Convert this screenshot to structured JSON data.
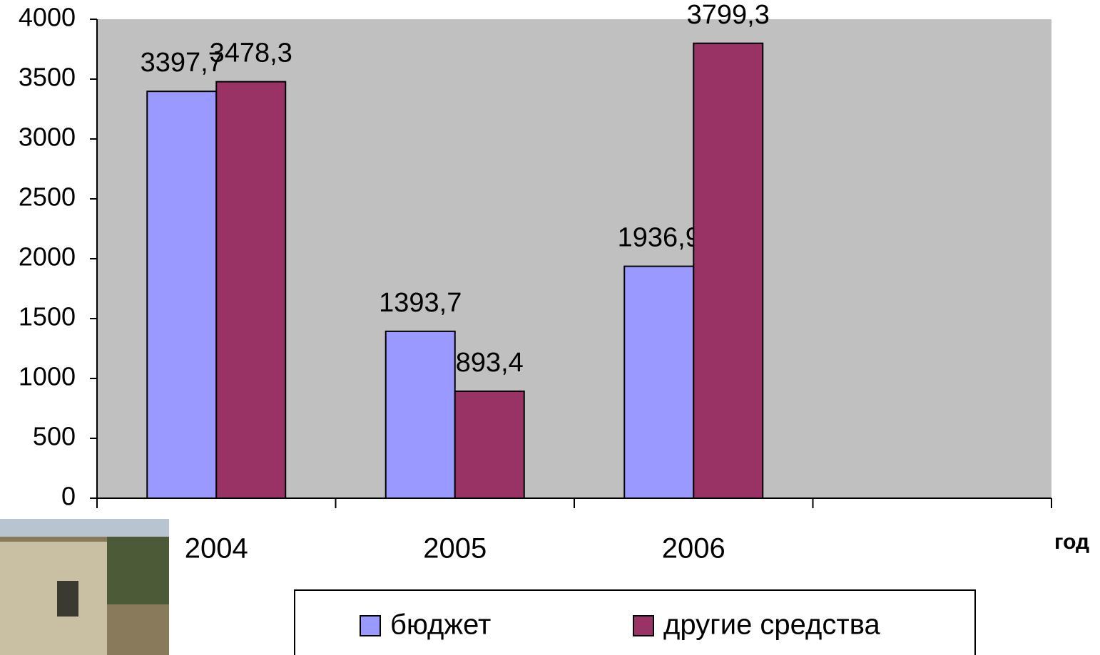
{
  "chart_data": {
    "type": "bar",
    "categories": [
      "2004",
      "2005",
      "2006",
      null
    ],
    "x_label": "год",
    "series": [
      {
        "name": "бюджет",
        "color": "#9999ff",
        "values": [
          3397.7,
          1393.7,
          1936.9,
          null
        ],
        "value_labels": [
          "3397,7",
          "1393,7",
          "1936,9",
          null
        ]
      },
      {
        "name": "другие средства",
        "color": "#993366",
        "values": [
          3478.3,
          893.4,
          3799.3,
          null
        ],
        "value_labels": [
          "3478,3",
          "893,4",
          "3799,3",
          null
        ]
      }
    ],
    "ylim": [
      0,
      4000
    ],
    "yticks": [
      0,
      500,
      1000,
      1500,
      2000,
      2500,
      3000,
      3500,
      4000
    ],
    "plot_background": "#c0c0c0"
  }
}
